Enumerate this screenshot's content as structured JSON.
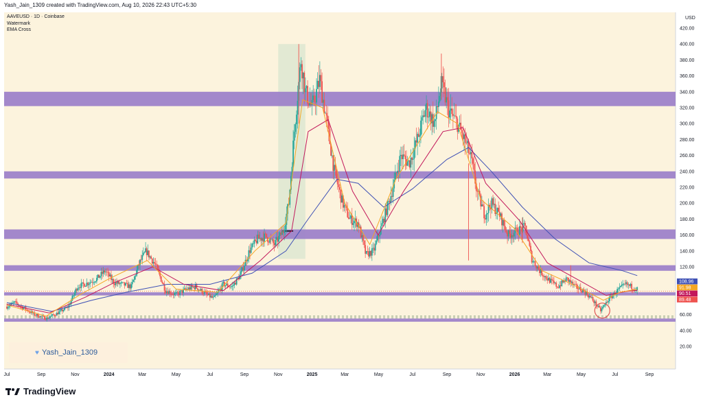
{
  "header": {
    "created_text": "Yash_Jain_1309 created with TradingView.com, Aug 10, 2026 22:43 UTC+5:30"
  },
  "legend": {
    "symbol": "AAVEUSD · 1D · Coinbase",
    "indicator1": "Watermark",
    "indicator2": "EMA Cross"
  },
  "watermark": {
    "text": "Yash_Jain_1309"
  },
  "brand": {
    "name": "TradingView"
  },
  "colors": {
    "background": "#fcf3dd",
    "zone": "#9b7fc9",
    "ema_fast": "#f5a623",
    "ema_mid": "#c2185b",
    "ema_slow": "#3f51b5",
    "up": "#26a69a",
    "down": "#ef5350"
  },
  "chart_data": {
    "type": "candlestick",
    "symbol": "AAVEUSD",
    "timeframe": "1D",
    "exchange": "Coinbase",
    "currency": "USD",
    "ylim": [
      15,
      430
    ],
    "y_ticks": [
      20,
      40,
      60,
      80,
      100,
      120,
      140,
      160,
      180,
      200,
      220,
      240,
      260,
      280,
      300,
      320,
      340,
      360,
      380,
      400,
      420
    ],
    "x_ticks": [
      {
        "label": "Jul",
        "date": "2023-07-01"
      },
      {
        "label": "Sep",
        "date": "2023-09-01"
      },
      {
        "label": "Nov",
        "date": "2023-11-01"
      },
      {
        "label": "2024",
        "date": "2024-01-01"
      },
      {
        "label": "Mar",
        "date": "2024-03-01"
      },
      {
        "label": "May",
        "date": "2024-05-01"
      },
      {
        "label": "Jul",
        "date": "2024-07-01"
      },
      {
        "label": "Sep",
        "date": "2024-09-01"
      },
      {
        "label": "Nov",
        "date": "2024-11-01"
      },
      {
        "label": "2025",
        "date": "2025-01-01"
      },
      {
        "label": "Mar",
        "date": "2025-03-01"
      },
      {
        "label": "May",
        "date": "2025-05-01"
      },
      {
        "label": "Jul",
        "date": "2025-07-01"
      },
      {
        "label": "Sep",
        "date": "2025-09-01"
      },
      {
        "label": "Nov",
        "date": "2025-11-01"
      },
      {
        "label": "2026",
        "date": "2026-01-01"
      },
      {
        "label": "Mar",
        "date": "2026-03-01"
      },
      {
        "label": "May",
        "date": "2026-05-01"
      },
      {
        "label": "Jul",
        "date": "2026-07-01"
      },
      {
        "label": "Sep",
        "date": "2026-09-01"
      }
    ],
    "price_path": [
      [
        "2023-07-01",
        70
      ],
      [
        "2023-07-15",
        75
      ],
      [
        "2023-08-01",
        68
      ],
      [
        "2023-08-20",
        60
      ],
      [
        "2023-09-10",
        55
      ],
      [
        "2023-10-01",
        62
      ],
      [
        "2023-10-20",
        70
      ],
      [
        "2023-11-05",
        95
      ],
      [
        "2023-11-25",
        100
      ],
      [
        "2023-12-10",
        105
      ],
      [
        "2023-12-25",
        115
      ],
      [
        "2024-01-10",
        100
      ],
      [
        "2024-01-25",
        98
      ],
      [
        "2024-02-10",
        95
      ],
      [
        "2024-02-25",
        125
      ],
      [
        "2024-03-08",
        140
      ],
      [
        "2024-03-25",
        122
      ],
      [
        "2024-04-12",
        90
      ],
      [
        "2024-05-01",
        85
      ],
      [
        "2024-05-20",
        92
      ],
      [
        "2024-06-05",
        95
      ],
      [
        "2024-06-25",
        85
      ],
      [
        "2024-07-08",
        80
      ],
      [
        "2024-07-25",
        98
      ],
      [
        "2024-08-10",
        95
      ],
      [
        "2024-08-25",
        110
      ],
      [
        "2024-09-10",
        140
      ],
      [
        "2024-09-25",
        155
      ],
      [
        "2024-10-10",
        158
      ],
      [
        "2024-10-25",
        148
      ],
      [
        "2024-11-10",
        165
      ],
      [
        "2024-11-20",
        200
      ],
      [
        "2024-12-01",
        300
      ],
      [
        "2024-12-12",
        380
      ],
      [
        "2024-12-20",
        340
      ],
      [
        "2025-01-01",
        320
      ],
      [
        "2025-01-15",
        355
      ],
      [
        "2025-01-28",
        300
      ],
      [
        "2025-02-10",
        240
      ],
      [
        "2025-02-25",
        200
      ],
      [
        "2025-03-10",
        180
      ],
      [
        "2025-03-25",
        175
      ],
      [
        "2025-04-08",
        135
      ],
      [
        "2025-04-22",
        140
      ],
      [
        "2025-05-08",
        175
      ],
      [
        "2025-05-25",
        215
      ],
      [
        "2025-06-10",
        260
      ],
      [
        "2025-06-25",
        250
      ],
      [
        "2025-07-10",
        280
      ],
      [
        "2025-07-25",
        320
      ],
      [
        "2025-08-10",
        300
      ],
      [
        "2025-08-22",
        350
      ],
      [
        "2025-09-05",
        315
      ],
      [
        "2025-09-20",
        300
      ],
      [
        "2025-10-05",
        275
      ],
      [
        "2025-10-15",
        255
      ],
      [
        "2025-10-25",
        215
      ],
      [
        "2025-11-08",
        185
      ],
      [
        "2025-11-20",
        200
      ],
      [
        "2025-12-05",
        185
      ],
      [
        "2025-12-20",
        160
      ],
      [
        "2026-01-05",
        165
      ],
      [
        "2026-01-20",
        170
      ],
      [
        "2026-02-01",
        130
      ],
      [
        "2026-02-15",
        115
      ],
      [
        "2026-03-01",
        105
      ],
      [
        "2026-03-20",
        95
      ],
      [
        "2026-04-05",
        105
      ],
      [
        "2026-04-20",
        95
      ],
      [
        "2026-05-05",
        90
      ],
      [
        "2026-05-20",
        80
      ],
      [
        "2026-06-05",
        65
      ],
      [
        "2026-06-18",
        78
      ],
      [
        "2026-07-05",
        90
      ],
      [
        "2026-07-20",
        98
      ],
      [
        "2026-08-10",
        92
      ]
    ],
    "ema_fast": [
      [
        "2023-07-01",
        72
      ],
      [
        "2023-09-10",
        58
      ],
      [
        "2023-11-10",
        85
      ],
      [
        "2024-01-01",
        105
      ],
      [
        "2024-03-10",
        128
      ],
      [
        "2024-05-01",
        92
      ],
      [
        "2024-07-15",
        88
      ],
      [
        "2024-09-20",
        140
      ],
      [
        "2024-11-15",
        175
      ],
      [
        "2024-12-15",
        330
      ],
      [
        "2025-01-20",
        320
      ],
      [
        "2025-03-01",
        200
      ],
      [
        "2025-04-15",
        148
      ],
      [
        "2025-06-01",
        230
      ],
      [
        "2025-08-15",
        315
      ],
      [
        "2025-09-20",
        300
      ],
      [
        "2025-11-01",
        205
      ],
      [
        "2026-01-01",
        168
      ],
      [
        "2026-02-20",
        115
      ],
      [
        "2026-04-15",
        98
      ],
      [
        "2026-06-10",
        78
      ],
      [
        "2026-07-10",
        88
      ],
      [
        "2026-08-10",
        91.98
      ]
    ],
    "ema_mid": [
      [
        "2023-07-01",
        73
      ],
      [
        "2023-09-15",
        62
      ],
      [
        "2023-11-20",
        82
      ],
      [
        "2024-01-10",
        100
      ],
      [
        "2024-03-20",
        120
      ],
      [
        "2024-05-15",
        98
      ],
      [
        "2024-07-25",
        90
      ],
      [
        "2024-09-30",
        128
      ],
      [
        "2024-11-25",
        165
      ],
      [
        "2024-12-25",
        290
      ],
      [
        "2025-01-30",
        305
      ],
      [
        "2025-03-15",
        215
      ],
      [
        "2025-04-30",
        160
      ],
      [
        "2025-06-15",
        215
      ],
      [
        "2025-08-25",
        290
      ],
      [
        "2025-09-30",
        295
      ],
      [
        "2025-11-10",
        225
      ],
      [
        "2026-01-10",
        178
      ],
      [
        "2026-03-01",
        125
      ],
      [
        "2026-04-30",
        102
      ],
      [
        "2026-06-15",
        84
      ],
      [
        "2026-07-20",
        89
      ],
      [
        "2026-08-10",
        90.51
      ]
    ],
    "ema_slow": [
      [
        "2023-07-01",
        75
      ],
      [
        "2023-09-20",
        64
      ],
      [
        "2023-12-01",
        78
      ],
      [
        "2024-02-01",
        88
      ],
      [
        "2024-04-15",
        98
      ],
      [
        "2024-07-01",
        98
      ],
      [
        "2024-09-15",
        112
      ],
      [
        "2024-11-15",
        140
      ],
      [
        "2024-12-25",
        180
      ],
      [
        "2025-02-15",
        230
      ],
      [
        "2025-03-25",
        225
      ],
      [
        "2025-05-10",
        195
      ],
      [
        "2025-07-01",
        218
      ],
      [
        "2025-09-01",
        255
      ],
      [
        "2025-10-10",
        270
      ],
      [
        "2025-11-20",
        240
      ],
      [
        "2026-01-15",
        195
      ],
      [
        "2026-03-15",
        155
      ],
      [
        "2026-05-15",
        125
      ],
      [
        "2026-07-15",
        115
      ],
      [
        "2026-08-10",
        108.96
      ]
    ],
    "zones": [
      [
        322,
        340
      ],
      [
        231,
        240
      ],
      [
        155,
        167
      ],
      [
        115,
        122
      ],
      [
        84,
        88
      ],
      [
        51,
        55
      ]
    ],
    "dashed_levels": [
      56,
      58
    ],
    "last_values": [
      {
        "value": "108.96",
        "color": "#3f51b5"
      },
      {
        "value": "91.98",
        "color": "#f5a623"
      },
      {
        "value": "90.51",
        "color": "#c2185b"
      },
      {
        "value": "89.48",
        "color": "#ef5350"
      }
    ]
  }
}
